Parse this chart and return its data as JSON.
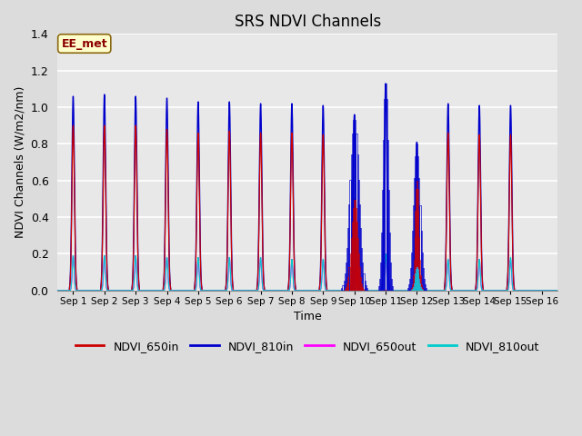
{
  "title": "SRS NDVI Channels",
  "xlabel": "Time",
  "ylabel": "NDVI Channels (W/m2/nm)",
  "ylim": [
    0.0,
    1.4
  ],
  "bg_color": "#dcdcdc",
  "plot_bg_color": "#e8e8e8",
  "annotation_text": "EE_met",
  "colors": {
    "NDVI_650in": "#cc0000",
    "NDVI_810in": "#0000cc",
    "NDVI_650out": "#ff00ff",
    "NDVI_810out": "#00cccc"
  },
  "yticks": [
    0.0,
    0.2,
    0.4,
    0.6,
    0.8,
    1.0,
    1.2,
    1.4
  ],
  "xtick_labels": [
    "Sep 1",
    "Sep 2",
    "Sep 3",
    "Sep 4",
    "Sep 5",
    "Sep 6",
    "Sep 7",
    "Sep 8",
    "Sep 9",
    "Sep 10",
    "Sep 11",
    "Sep 12",
    "Sep 13",
    "Sep 14",
    "Sep 15",
    "Sep 16"
  ]
}
